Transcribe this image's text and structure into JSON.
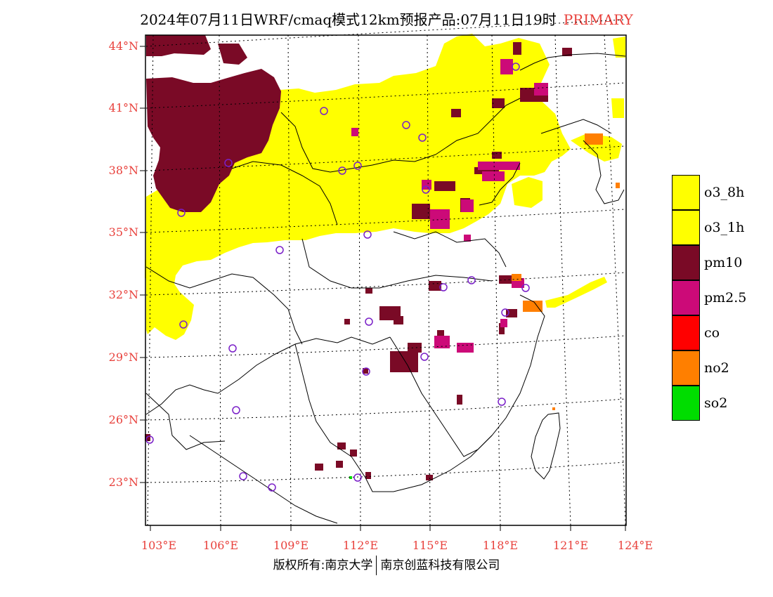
{
  "title": {
    "main": "2024年07月11日WRF/cmaq模式12km预报产品:07月11日19时",
    "mode": "PRIMARY"
  },
  "map": {
    "lat_labels": [
      "44°N",
      "41°N",
      "38°N",
      "35°N",
      "32°N",
      "29°N",
      "26°N",
      "23°N"
    ],
    "lon_labels": [
      "103°E",
      "106°E",
      "109°E",
      "112°E",
      "115°E",
      "118°E",
      "121°E",
      "124°E"
    ],
    "grid_lines": "dotted"
  },
  "legend": [
    {
      "label": "o3_8h",
      "color": "#ffff00"
    },
    {
      "label": "o3_1h",
      "color": "#ffff00"
    },
    {
      "label": "pm10",
      "color": "#7a0a26"
    },
    {
      "label": "pm2.5",
      "color": "#cc0a78"
    },
    {
      "label": "co",
      "color": "#ff0000"
    },
    {
      "label": "no2",
      "color": "#ff7f00"
    },
    {
      "label": "so2",
      "color": "#00dd00"
    }
  ],
  "footer": {
    "left": "版权所有:南京大学",
    "right": "南京创蓝科技有限公司"
  }
}
